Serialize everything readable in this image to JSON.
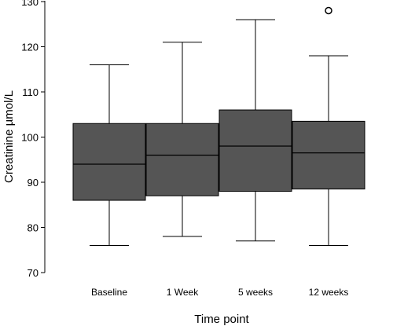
{
  "chart_data": {
    "type": "box",
    "title": "",
    "xlabel": "Time point",
    "ylabel": "Creatinine µmol/L",
    "ylim": [
      70,
      130
    ],
    "yticks": [
      70,
      80,
      90,
      100,
      110,
      120,
      130
    ],
    "categories": [
      "Baseline",
      "1 Week",
      "5 weeks",
      "12 weeks"
    ],
    "boxes": [
      {
        "min": 76,
        "q1": 86,
        "median": 94,
        "q3": 103,
        "max": 116,
        "outliers": []
      },
      {
        "min": 78,
        "q1": 87,
        "median": 96,
        "q3": 103,
        "max": 121,
        "outliers": []
      },
      {
        "min": 77,
        "q1": 88,
        "median": 98,
        "q3": 106,
        "max": 126,
        "outliers": []
      },
      {
        "min": 76,
        "q1": 88.5,
        "median": 96.5,
        "q3": 103.5,
        "max": 118,
        "outliers": [
          128
        ]
      }
    ],
    "box_color": "#555555",
    "grid": false,
    "legend": "none"
  }
}
